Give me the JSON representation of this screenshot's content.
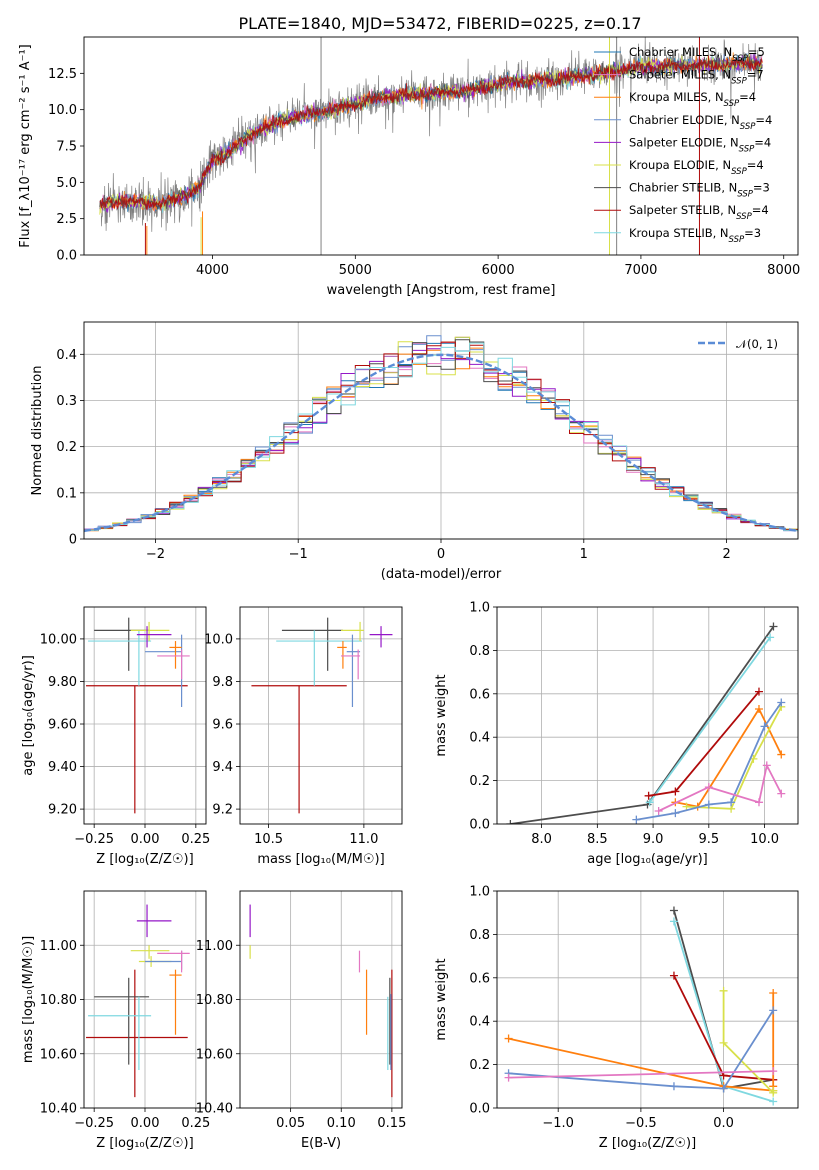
{
  "figure": {
    "title": "PLATE=1840, MJD=53472, FIBERID=0225, z=0.17"
  },
  "chart_data": [
    {
      "id": "spectrum",
      "type": "line",
      "title": "PLATE=1840, MJD=53472, FIBERID=0225, z=0.17",
      "xlabel": "wavelength [Angstrom, rest frame]",
      "ylabel": "Flux [f_λ10⁻¹⁷ erg cm⁻² s⁻¹ A⁻¹]",
      "xlim": [
        3100,
        8100
      ],
      "ylim": [
        0,
        15
      ],
      "xticks": [
        4000,
        5000,
        6000,
        7000,
        8000
      ],
      "yticks": [
        0.0,
        2.5,
        5.0,
        7.5,
        10.0,
        12.5
      ],
      "legend": "top-right",
      "data": {
        "x": [
          3210,
          3400,
          3600,
          3800,
          3900,
          4000,
          4100,
          4300,
          4500,
          4800,
          5000,
          5200,
          5500,
          5800,
          6000,
          6500,
          7000,
          7500,
          7850
        ],
        "y": [
          3.4,
          3.8,
          3.5,
          4.0,
          4.6,
          6.5,
          7.0,
          8.5,
          9.3,
          9.9,
          10.4,
          10.9,
          11.1,
          11.3,
          11.8,
          12.2,
          12.9,
          13.1,
          13.2
        ]
      },
      "series": [
        {
          "name": "Chabrier MILES, N_SSP=5",
          "color": "#1f77b4"
        },
        {
          "name": "Salpeter MILES, N_SSP=7",
          "color": "#e377c2"
        },
        {
          "name": "Kroupa MILES, N_SSP=4",
          "color": "#ff7f0e"
        },
        {
          "name": "Chabrier ELODIE, N_SSP=4",
          "color": "#6a8fce"
        },
        {
          "name": "Salpeter ELODIE, N_SSP=4",
          "color": "#9417c7"
        },
        {
          "name": "Kroupa ELODIE, N_SSP=4",
          "color": "#d8e04a"
        },
        {
          "name": "Chabrier STELIB, N_SSP=3",
          "color": "#4d4d4d"
        },
        {
          "name": "Salpeter STELIB, N_SSP=4",
          "color": "#b00b0b"
        },
        {
          "name": "Kroupa STELIB, N_SSP=3",
          "color": "#7fd8e0"
        }
      ]
    },
    {
      "id": "residuals",
      "type": "line",
      "xlabel": "(data-model)/error",
      "ylabel": "Normed distribution",
      "xlim": [
        -2.5,
        2.5
      ],
      "ylim": [
        0,
        0.47
      ],
      "xticks": [
        -2,
        -1,
        0,
        1,
        2
      ],
      "yticks": [
        0.0,
        0.1,
        0.2,
        0.3,
        0.4
      ],
      "grid": true,
      "legend": "top-right",
      "gaussian_label": "𝒩(0, 1)",
      "gaussian_color": "#5b8cd6",
      "bin_width": 0.1
    },
    {
      "id": "age_vs_Z",
      "type": "scatter",
      "xlabel": "Z [log₁₀(Z/Z☉)]",
      "ylabel": "age  [log₁₀(age/yr)]",
      "xlim": [
        -0.3,
        0.3
      ],
      "ylim": [
        9.13,
        10.15
      ],
      "xticks": [
        -0.25,
        0.0,
        0.25
      ],
      "yticks": [
        9.2,
        9.4,
        9.6,
        9.8,
        10.0
      ],
      "grid": true,
      "points": [
        {
          "x": -0.05,
          "y": 9.78,
          "xerr": [
            0.24,
            0.26
          ],
          "yerr": [
            0.6,
            0.0
          ],
          "color": "#b00b0b"
        },
        {
          "x": -0.08,
          "y": 10.04,
          "xerr": [
            0.17,
            0.1
          ],
          "yerr": [
            0.19,
            0.06
          ],
          "color": "#4d4d4d"
        },
        {
          "x": -0.03,
          "y": 9.99,
          "xerr": [
            0.25,
            0.06
          ],
          "yerr": [
            0.21,
            0.05
          ],
          "color": "#7fd8e0"
        },
        {
          "x": 0.02,
          "y": 10.04,
          "xerr": [
            0.09,
            0.1
          ],
          "yerr": [
            0.05,
            0.04
          ],
          "color": "#d8e04a"
        },
        {
          "x": 0.01,
          "y": 10.02,
          "xerr": [
            0.05,
            0.12
          ],
          "yerr": [
            0.06,
            0.04
          ],
          "color": "#9417c7"
        },
        {
          "x": 0.18,
          "y": 9.94,
          "xerr": [
            0.18,
            0.0
          ],
          "yerr": [
            0.26,
            0.08
          ],
          "color": "#6a8fce"
        },
        {
          "x": 0.15,
          "y": 9.96,
          "xerr": [
            0.03,
            0.03
          ],
          "yerr": [
            0.1,
            0.03
          ],
          "color": "#ff7f0e"
        },
        {
          "x": 0.18,
          "y": 9.92,
          "xerr": [
            0.12,
            0.04
          ],
          "yerr": [
            0.11,
            0.03
          ],
          "color": "#e377c2"
        }
      ]
    },
    {
      "id": "age_vs_mass",
      "type": "scatter",
      "xlabel": "mass [log₁₀(M/M☉)]",
      "ylabel": "",
      "xlim": [
        10.35,
        11.2
      ],
      "ylim": [
        9.13,
        10.15
      ],
      "xticks": [
        10.5,
        11.0
      ],
      "yticks": [
        9.2,
        9.4,
        9.6,
        9.8,
        10.0
      ],
      "grid": true,
      "points": [
        {
          "x": 10.66,
          "y": 9.78,
          "xerr": [
            0.25,
            0.25
          ],
          "yerr": [
            0.6,
            0.0
          ],
          "color": "#b00b0b"
        },
        {
          "x": 10.81,
          "y": 10.04,
          "xerr": [
            0.24,
            0.08
          ],
          "yerr": [
            0.19,
            0.06
          ],
          "color": "#4d4d4d"
        },
        {
          "x": 10.74,
          "y": 9.99,
          "xerr": [
            0.2,
            0.25
          ],
          "yerr": [
            0.21,
            0.05
          ],
          "color": "#7fd8e0"
        },
        {
          "x": 10.98,
          "y": 10.04,
          "xerr": [
            0.1,
            0.02
          ],
          "yerr": [
            0.05,
            0.04
          ],
          "color": "#d8e04a"
        },
        {
          "x": 11.09,
          "y": 10.02,
          "xerr": [
            0.06,
            0.06
          ],
          "yerr": [
            0.06,
            0.04
          ],
          "color": "#9417c7"
        },
        {
          "x": 10.94,
          "y": 9.94,
          "xerr": [
            0.03,
            0.04
          ],
          "yerr": [
            0.26,
            0.08
          ],
          "color": "#6a8fce"
        },
        {
          "x": 10.89,
          "y": 9.96,
          "xerr": [
            0.03,
            0.02
          ],
          "yerr": [
            0.1,
            0.03
          ],
          "color": "#ff7f0e"
        },
        {
          "x": 10.97,
          "y": 9.92,
          "xerr": [
            0.09,
            0.01
          ],
          "yerr": [
            0.11,
            0.03
          ],
          "color": "#e377c2"
        }
      ]
    },
    {
      "id": "weight_vs_age",
      "type": "line",
      "xlabel": "age  [log₁₀(age/yr)]",
      "ylabel": "mass weight",
      "xlim": [
        7.6,
        10.3
      ],
      "ylim": [
        0,
        1.0
      ],
      "xticks": [
        8.0,
        8.5,
        9.0,
        9.5,
        10.0
      ],
      "yticks": [
        0.0,
        0.2,
        0.4,
        0.6,
        0.8,
        1.0
      ],
      "grid": true,
      "series": [
        {
          "color": "#4d4d4d",
          "x": [
            7.72,
            8.95,
            10.08
          ],
          "y": [
            0.0,
            0.09,
            0.91
          ]
        },
        {
          "color": "#7fd8e0",
          "x": [
            8.97,
            10.05
          ],
          "y": [
            0.1,
            0.86
          ]
        },
        {
          "color": "#b00b0b",
          "x": [
            8.96,
            9.2,
            9.95
          ],
          "y": [
            0.13,
            0.15,
            0.61
          ]
        },
        {
          "color": "#ff7f0e",
          "x": [
            9.2,
            9.4,
            9.95,
            10.15
          ],
          "y": [
            0.1,
            0.08,
            0.53,
            0.32
          ]
        },
        {
          "color": "#d8e04a",
          "x": [
            9.3,
            9.7,
            9.9,
            10.15
          ],
          "y": [
            0.08,
            0.07,
            0.3,
            0.54
          ]
        },
        {
          "color": "#6a8fce",
          "x": [
            8.85,
            9.2,
            9.5,
            9.7,
            10.0,
            10.15
          ],
          "y": [
            0.02,
            0.05,
            0.09,
            0.1,
            0.45,
            0.56
          ]
        },
        {
          "color": "#e377c2",
          "x": [
            9.05,
            9.5,
            9.95,
            10.02,
            10.15
          ],
          "y": [
            0.06,
            0.17,
            0.1,
            0.27,
            0.14
          ]
        }
      ]
    },
    {
      "id": "mass_vs_Z",
      "type": "scatter",
      "xlabel": "Z [log₁₀(Z/Z☉)]",
      "ylabel": "mass [log₁₀(M/M☉)]",
      "xlim": [
        -0.3,
        0.3
      ],
      "ylim": [
        10.4,
        11.2
      ],
      "xticks": [
        -0.25,
        0.0,
        0.25
      ],
      "yticks": [
        10.4,
        10.6,
        10.8,
        11.0
      ],
      "grid": true,
      "points": [
        {
          "x": -0.05,
          "y": 10.66,
          "xerr": [
            0.24,
            0.26
          ],
          "yerr": [
            0.22,
            0.25
          ],
          "color": "#b00b0b"
        },
        {
          "x": -0.08,
          "y": 10.81,
          "xerr": [
            0.17,
            0.1
          ],
          "yerr": [
            0.25,
            0.07
          ],
          "color": "#4d4d4d"
        },
        {
          "x": -0.03,
          "y": 10.74,
          "xerr": [
            0.25,
            0.06
          ],
          "yerr": [
            0.2,
            0.07
          ],
          "color": "#7fd8e0"
        },
        {
          "x": 0.02,
          "y": 10.98,
          "xerr": [
            0.09,
            0.1
          ],
          "yerr": [
            0.03,
            0.02
          ],
          "color": "#d8e04a"
        },
        {
          "x": 0.01,
          "y": 11.09,
          "xerr": [
            0.05,
            0.12
          ],
          "yerr": [
            0.06,
            0.06
          ],
          "color": "#9417c7"
        },
        {
          "x": 0.03,
          "y": 10.94,
          "xerr": [
            0.06,
            0.1
          ],
          "yerr": [
            0.02,
            0.02
          ],
          "color": "#d8e04a"
        },
        {
          "x": 0.18,
          "y": 10.94,
          "xerr": [
            0.18,
            0.0
          ],
          "yerr": [
            0.03,
            0.04
          ],
          "color": "#6a8fce"
        },
        {
          "x": 0.15,
          "y": 10.89,
          "xerr": [
            0.03,
            0.03
          ],
          "yerr": [
            0.22,
            0.02
          ],
          "color": "#ff7f0e"
        },
        {
          "x": 0.18,
          "y": 10.97,
          "xerr": [
            0.12,
            0.04
          ],
          "yerr": [
            0.07,
            0.01
          ],
          "color": "#e377c2"
        }
      ]
    },
    {
      "id": "mass_vs_ebv",
      "type": "scatter",
      "xlabel": "E(B-V)",
      "ylabel": "",
      "xlim": [
        0.0,
        0.16
      ],
      "ylim": [
        10.4,
        11.2
      ],
      "xticks": [
        0.05,
        0.1,
        0.15
      ],
      "yticks": [
        10.4,
        10.6,
        10.8,
        11.0
      ],
      "grid": true,
      "points": [
        {
          "x": 0.01,
          "y": 11.09,
          "yerr": [
            0.06,
            0.06
          ],
          "color": "#9417c7"
        },
        {
          "x": 0.01,
          "y": 10.98,
          "yerr": [
            0.03,
            0.02
          ],
          "color": "#d8e04a"
        },
        {
          "x": 0.118,
          "y": 10.97,
          "yerr": [
            0.07,
            0.01
          ],
          "color": "#e377c2"
        },
        {
          "x": 0.125,
          "y": 10.89,
          "yerr": [
            0.22,
            0.02
          ],
          "color": "#ff7f0e"
        },
        {
          "x": 0.146,
          "y": 10.74,
          "yerr": [
            0.2,
            0.07
          ],
          "color": "#7fd8e0"
        },
        {
          "x": 0.148,
          "y": 10.81,
          "yerr": [
            0.25,
            0.07
          ],
          "color": "#4d4d4d"
        },
        {
          "x": 0.15,
          "y": 10.66,
          "yerr": [
            0.22,
            0.25
          ],
          "color": "#b00b0b"
        },
        {
          "x": 0.149,
          "y": 10.7,
          "yerr": [
            0.16,
            0.12
          ],
          "color": "#6a8fce"
        }
      ]
    },
    {
      "id": "weight_vs_Z",
      "type": "line",
      "xlabel": "Z [log₁₀(Z/Z☉)]",
      "ylabel": "mass weight",
      "xlim": [
        -1.37,
        0.45
      ],
      "ylim": [
        0,
        1.0
      ],
      "xticks": [
        -1.0,
        -0.5,
        0.0
      ],
      "yticks": [
        0.0,
        0.2,
        0.4,
        0.6,
        0.8,
        1.0
      ],
      "grid": true,
      "series": [
        {
          "color": "#4d4d4d",
          "x": [
            -0.3,
            0.0,
            0.3
          ],
          "y": [
            0.91,
            0.09,
            0.13
          ]
        },
        {
          "color": "#7fd8e0",
          "x": [
            -0.3,
            0.0,
            0.3
          ],
          "y": [
            0.86,
            0.1,
            0.03
          ]
        },
        {
          "color": "#b00b0b",
          "x": [
            -0.3,
            0.0,
            0.3
          ],
          "y": [
            0.61,
            0.15,
            0.13
          ]
        },
        {
          "color": "#ff7f0e",
          "x": [
            -1.3,
            0.0,
            0.3,
            0.3,
            0.3
          ],
          "y": [
            0.32,
            0.1,
            0.08,
            0.53,
            0.1
          ]
        },
        {
          "color": "#d8e04a",
          "x": [
            0.0,
            0.0,
            0.3,
            0.3
          ],
          "y": [
            0.54,
            0.3,
            0.07,
            0.08
          ]
        },
        {
          "color": "#6a8fce",
          "x": [
            -1.3,
            -0.3,
            0.0,
            0.3
          ],
          "y": [
            0.16,
            0.1,
            0.09,
            0.45
          ]
        },
        {
          "color": "#e377c2",
          "x": [
            -1.3,
            0.3
          ],
          "y": [
            0.14,
            0.17
          ]
        }
      ]
    }
  ]
}
